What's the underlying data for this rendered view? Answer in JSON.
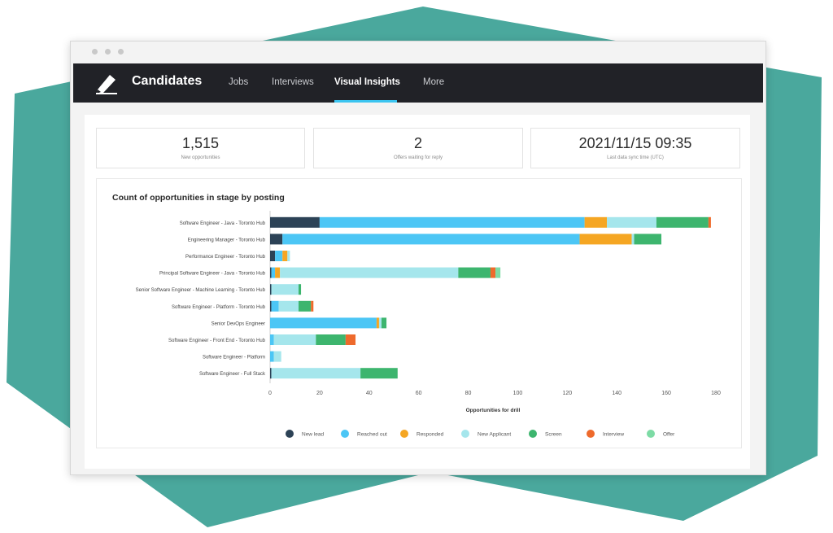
{
  "app": {
    "title": "Candidates"
  },
  "nav": {
    "items": [
      {
        "label": "Jobs",
        "active": false
      },
      {
        "label": "Interviews",
        "active": false
      },
      {
        "label": "Visual Insights",
        "active": true
      },
      {
        "label": "More",
        "active": false
      }
    ]
  },
  "stats": [
    {
      "value": "1,515",
      "label": "New opportunities"
    },
    {
      "value": "2",
      "label": "Offers waiting for reply"
    },
    {
      "value": "2021/11/15 09:35",
      "label": "Last data sync time (UTC)"
    }
  ],
  "colors": {
    "accent": "#3bc4f0",
    "navbar": "#212227",
    "background_shape": "#4aa89d"
  },
  "chart_data": {
    "type": "bar",
    "orientation": "horizontal",
    "stacked": true,
    "title": "Count of opportunities in stage by posting",
    "xlabel": "Opportunities for drill",
    "xlim": [
      0,
      180
    ],
    "xticks": [
      0,
      20,
      40,
      60,
      80,
      100,
      120,
      140,
      160,
      180
    ],
    "legend_position": "bottom",
    "categories": [
      "Software Engineer - Java - Toronto Hub",
      "Engineering Manager - Toronto Hub",
      "Performance Engineer - Toronto Hub",
      "Principal Software Engineer - Java - Toronto Hub",
      "Senior Software Engineer - Machine Learning - Toronto Hub",
      "Software Engineer - Platform - Toronto Hub",
      "Senior DevOps Engineer",
      "Software Engineer - Front End - Toronto Hub",
      "Software Engineer - Platform",
      "Software Engineer - Full Stack"
    ],
    "series": [
      {
        "name": "New lead",
        "color": "#2c4256",
        "values": [
          20,
          5,
          2,
          0.5,
          0.5,
          0.5,
          0,
          0,
          0,
          0.5
        ]
      },
      {
        "name": "Reached out",
        "color": "#4cc6f5",
        "values": [
          107,
          120,
          3,
          1.5,
          0,
          3,
          43,
          1.5,
          1.5,
          0
        ]
      },
      {
        "name": "Responded",
        "color": "#f5a623",
        "values": [
          9,
          21,
          2,
          2,
          0,
          0,
          1,
          0,
          0,
          0
        ]
      },
      {
        "name": "New Applicant",
        "color": "#a5e6ec",
        "values": [
          20,
          1,
          1,
          72,
          11,
          8,
          1,
          17,
          3,
          36
        ]
      },
      {
        "name": "Screen",
        "color": "#3db56e",
        "values": [
          21,
          11,
          0,
          13,
          1,
          5,
          2,
          12,
          0,
          15
        ]
      },
      {
        "name": "Interview",
        "color": "#ee6a2c",
        "values": [
          1,
          0,
          0,
          2,
          0,
          1,
          0,
          4,
          0,
          0
        ]
      },
      {
        "name": "Offer",
        "color": "#7ddba5",
        "values": [
          0,
          0,
          0,
          2,
          0,
          0,
          0,
          0,
          0,
          0
        ]
      }
    ]
  }
}
